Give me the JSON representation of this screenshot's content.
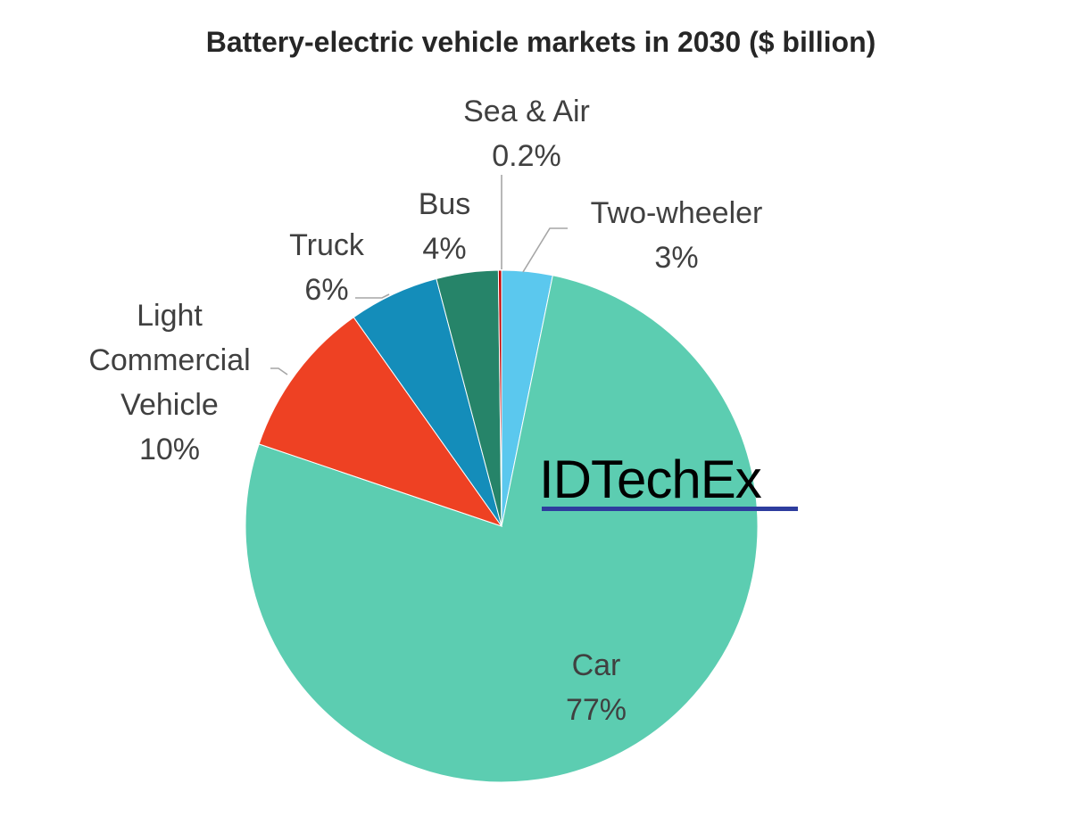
{
  "chart_data": {
    "type": "pie",
    "title": "Battery-electric vehicle markets in 2030 ($ billion)",
    "start_angle_deg": 0,
    "direction": "clockwise",
    "legend": "none",
    "data_labels": "category name and percentage",
    "slices": [
      {
        "name": "Two-wheeler",
        "percent": 3.2,
        "display_value": "3%",
        "color": "#5BC8EE"
      },
      {
        "name": "Car",
        "percent": 77.0,
        "display_value": "77%",
        "color": "#5CCDB1"
      },
      {
        "name": "Light Commercial Vehicle",
        "percent": 10.0,
        "display_value": "10%",
        "color": "#EE4123"
      },
      {
        "name": "Truck",
        "percent": 5.7,
        "display_value": "6%",
        "color": "#148DBA"
      },
      {
        "name": "Bus",
        "percent": 3.9,
        "display_value": "4%",
        "color": "#268469"
      },
      {
        "name": "Sea & Air",
        "percent": 0.2,
        "display_value": "0.2%",
        "color": "#C00000"
      }
    ]
  },
  "watermark": {
    "text": "IDTechEx",
    "underline_color": "#2E3D9E"
  }
}
